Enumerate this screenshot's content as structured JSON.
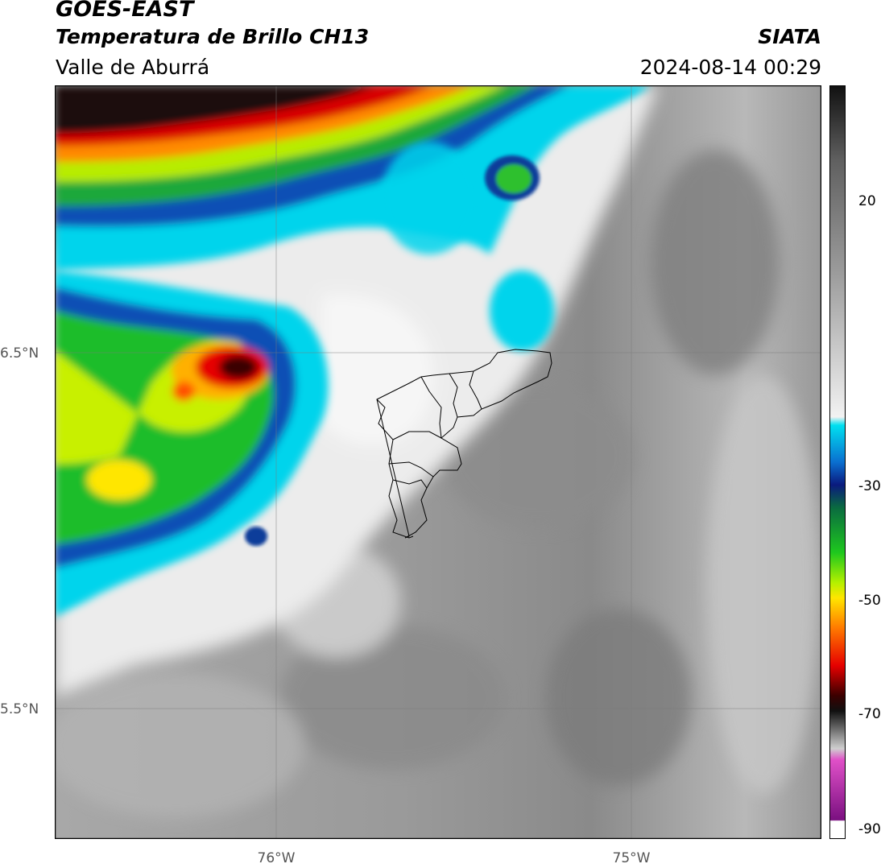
{
  "header": {
    "satellite": "GOES-EAST",
    "product": "Temperatura de Brillo CH13",
    "region": "Valle de Aburrá",
    "organization": "SIATA",
    "datetime": "2024-08-14 00:29"
  },
  "map": {
    "lat_ticks": [
      "6.5°N",
      "5.5°N"
    ],
    "lon_ticks": [
      "76°W",
      "75°W"
    ],
    "overlay": "Valle de Aburrá municipality boundaries",
    "gridlines": true
  },
  "colorbar": {
    "tick_labels": [
      "20",
      "-30",
      "-50",
      "-70",
      "-90"
    ],
    "colors": {
      "warm_gray_top": "#1a1a1a",
      "mid_gray": "#a0a0a0",
      "light": "#f0f0f0",
      "cyan": "#00d7ef",
      "blue": "#0a4ab0",
      "navy": "#0a1a6e",
      "green": "#1ec81e",
      "lime": "#b4f000",
      "yellow": "#ffe600",
      "orange": "#ff7a00",
      "red": "#e60000",
      "darkred": "#3a0000",
      "magenta": "#d040c0",
      "purple": "#7a1080"
    }
  }
}
